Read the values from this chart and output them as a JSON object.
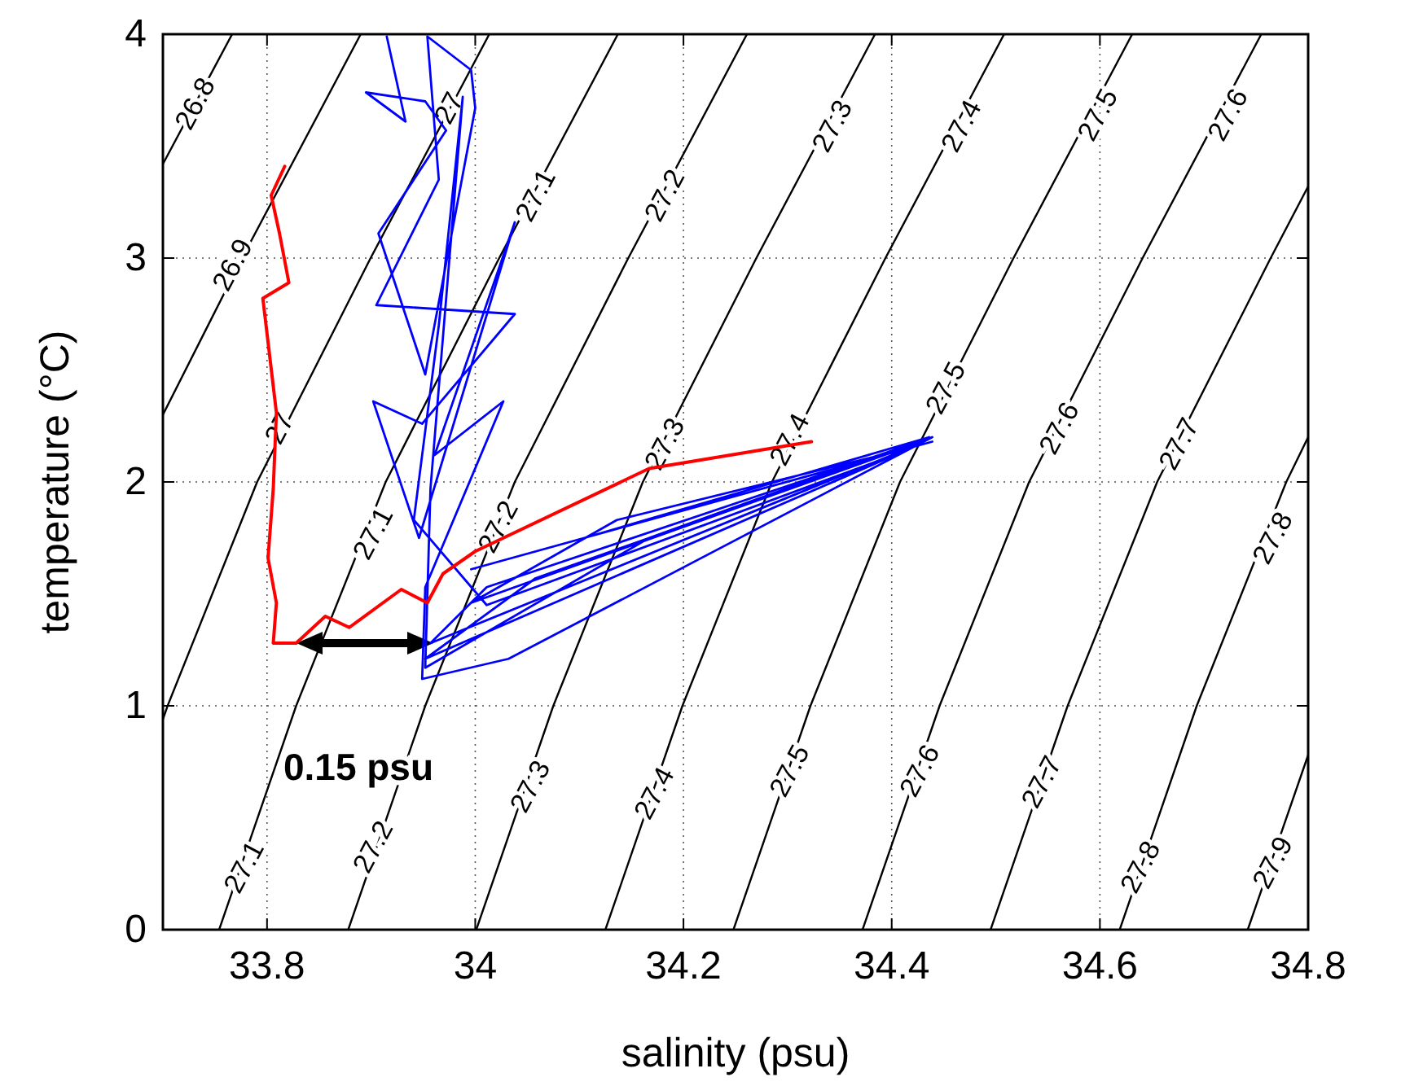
{
  "chart_data": {
    "type": "line",
    "xlabel": "salinity (psu)",
    "ylabel": "temperature (°C)",
    "xlim": [
      33.7,
      34.8
    ],
    "ylim": [
      0,
      4
    ],
    "xticks": [
      33.8,
      {
        "value": 34,
        "label": "34"
      },
      34.2,
      34.4,
      34.6,
      34.8
    ],
    "yticks": [
      0,
      1,
      2,
      3,
      4
    ],
    "grid": true,
    "line_style": "solid",
    "series": [
      {
        "color": "#000000",
        "x": [
          33.7,
          33.7665
        ],
        "values": [
          3.42,
          4
        ]
      },
      {
        "color": "#000000",
        "x": [
          33.7,
          33.776,
          33.89
        ],
        "values": [
          2.3,
          3,
          4
        ]
      },
      {
        "color": "#000000",
        "x": [
          33.7,
          33.7045,
          33.7905,
          33.8995,
          34.0135
        ],
        "values": [
          0.94,
          1,
          2,
          3,
          4
        ]
      },
      {
        "color": "#000000",
        "x": [
          33.754,
          33.828,
          33.914,
          34.023,
          34.137
        ],
        "values": [
          0,
          1,
          2,
          3,
          4
        ]
      },
      {
        "color": "#000000",
        "x": [
          33.878,
          33.952,
          34.038,
          34.147,
          34.261
        ],
        "values": [
          0,
          1,
          2,
          3,
          4
        ]
      },
      {
        "color": "#000000",
        "x": [
          34.001,
          34.075,
          34.161,
          34.27,
          34.384
        ],
        "values": [
          0,
          1,
          2,
          3,
          4
        ]
      },
      {
        "color": "#000000",
        "x": [
          34.125,
          34.199,
          34.285,
          34.394,
          34.508
        ],
        "values": [
          0,
          1,
          2,
          3,
          4
        ]
      },
      {
        "color": "#000000",
        "x": [
          34.248,
          34.322,
          34.408,
          34.517,
          34.631
        ],
        "values": [
          0,
          1,
          2,
          3,
          4
        ]
      },
      {
        "color": "#000000",
        "x": [
          34.372,
          34.446,
          34.532,
          34.641,
          34.755
        ],
        "values": [
          0,
          1,
          2,
          3,
          4
        ]
      },
      {
        "color": "#000000",
        "x": [
          34.495,
          34.569,
          34.655,
          34.764,
          34.8
        ],
        "values": [
          0,
          1,
          2,
          3,
          3.32
        ]
      },
      {
        "color": "#000000",
        "x": [
          34.619,
          34.693,
          34.779,
          34.8
        ],
        "values": [
          0,
          1,
          2,
          2.2
        ]
      },
      {
        "color": "#000000",
        "x": [
          34.742,
          34.8
        ],
        "values": [
          0,
          0.78
        ]
      },
      {
        "color": "#0000ff",
        "x": [
          33.915,
          33.933,
          33.895,
          33.952,
          33.972,
          33.907,
          33.952,
          34.0,
          33.996,
          33.954,
          33.965,
          33.905,
          34.038,
          33.949,
          33.902,
          33.946,
          34.038,
          33.961,
          34.027,
          33.952,
          33.949,
          34.032,
          34.439,
          34.011,
          33.957,
          34.416,
          34.136,
          33.996,
          34.435,
          34.058,
          33.952,
          34.408,
          34.011,
          33.941,
          33.965,
          33.988,
          33.957,
          33.952,
          34.167,
          34.436,
          34.105,
          33.996,
          34.439
        ],
        "values": [
          3.99,
          3.61,
          3.74,
          3.7,
          3.57,
          3.11,
          2.48,
          3.67,
          3.84,
          3.99,
          3.35,
          2.79,
          2.75,
          2.26,
          2.36,
          1.75,
          3.16,
          2.12,
          2.36,
          1.53,
          1.12,
          1.21,
          2.2,
          1.53,
          1.28,
          2.15,
          1.83,
          1.46,
          2.19,
          1.57,
          1.21,
          2.13,
          1.45,
          1.83,
          2.7,
          3.72,
          1.97,
          1.17,
          1.75,
          2.2,
          1.75,
          1.61,
          2.18
        ]
      },
      {
        "color": "#ff0000",
        "x": [
          33.817,
          33.804,
          33.812,
          33.821,
          33.796,
          33.809,
          33.806,
          33.801,
          33.809,
          33.806,
          33.828,
          33.856,
          33.879,
          33.929,
          33.954,
          33.969,
          34.0,
          34.167,
          34.323
        ],
        "values": [
          3.41,
          3.28,
          3.11,
          2.89,
          2.82,
          2.31,
          1.97,
          1.66,
          1.46,
          1.28,
          1.28,
          1.4,
          1.35,
          1.52,
          1.46,
          1.59,
          1.69,
          2.06,
          2.18
        ]
      }
    ],
    "annotations": [
      {
        "text": "26.8",
        "x": 33.731,
        "y": 3.69
      },
      {
        "text": "26.9",
        "x": 33.767,
        "y": 2.97
      },
      {
        "text": "27",
        "x": 33.975,
        "y": 3.67
      },
      {
        "text": "27",
        "x": 33.812,
        "y": 2.24
      },
      {
        "text": "27.1",
        "x": 34.058,
        "y": 3.28
      },
      {
        "text": "27.2",
        "x": 34.182,
        "y": 3.28
      },
      {
        "text": "27.3",
        "x": 34.182,
        "y": 2.17
      },
      {
        "text": "27.3",
        "x": 34.343,
        "y": 3.59
      },
      {
        "text": "27.4",
        "x": 34.467,
        "y": 3.59
      },
      {
        "text": "27.5",
        "x": 34.598,
        "y": 3.64
      },
      {
        "text": "27.6",
        "x": 34.723,
        "y": 3.64
      },
      {
        "text": "27.4",
        "x": 34.302,
        "y": 2.19
      },
      {
        "text": "27.5",
        "x": 34.452,
        "y": 2.42
      },
      {
        "text": "27.6",
        "x": 34.561,
        "y": 2.24
      },
      {
        "text": "27.7",
        "x": 34.676,
        "y": 2.17
      },
      {
        "text": "27.1",
        "x": 33.902,
        "y": 1.77
      },
      {
        "text": "27.2",
        "x": 34.022,
        "y": 1.8
      },
      {
        "text": "27.1",
        "x": 33.778,
        "y": 0.28
      },
      {
        "text": "27.2",
        "x": 33.902,
        "y": 0.37
      },
      {
        "text": "27.3",
        "x": 34.053,
        "y": 0.64
      },
      {
        "text": "27.4",
        "x": 34.172,
        "y": 0.61
      },
      {
        "text": "27.5",
        "x": 34.302,
        "y": 0.71
      },
      {
        "text": "27.6",
        "x": 34.427,
        "y": 0.71
      },
      {
        "text": "27.7",
        "x": 34.544,
        "y": 0.66
      },
      {
        "text": "27.8",
        "x": 34.639,
        "y": 0.28
      },
      {
        "text": "27.9",
        "x": 34.766,
        "y": 0.3
      },
      {
        "text": "27.8",
        "x": 34.766,
        "y": 1.75
      },
      "0.15 psu"
    ]
  }
}
